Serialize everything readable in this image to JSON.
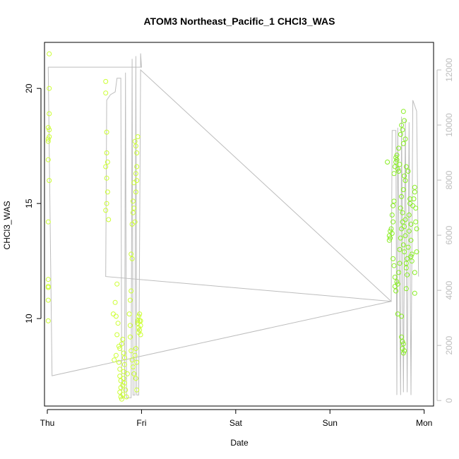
{
  "chart_data": {
    "type": "scatter",
    "title": "ATOM3 Northeast_Pacific_1 CHCl3_WAS",
    "xlabel": "Date",
    "ylabel": "CHCl3_WAS",
    "x_ticks": [
      {
        "label": "Thu",
        "value": 0
      },
      {
        "label": "Fri",
        "value": 1
      },
      {
        "label": "Sat",
        "value": 2
      },
      {
        "label": "Sun",
        "value": 3
      },
      {
        "label": "Mon",
        "value": 4
      }
    ],
    "xlim": [
      -0.03,
      4.1
    ],
    "ylim": [
      6.2,
      22.0
    ],
    "y_ticks": [
      10,
      15,
      20
    ],
    "y2lim": [
      -200,
      13000
    ],
    "y2_ticks": [
      0,
      2000,
      4000,
      6000,
      8000,
      10000,
      12000
    ],
    "grid": false,
    "colors": {
      "points_early": "#ccff33",
      "points_late": "#88ee22",
      "altitude_line": "#bdbdbd",
      "axis": "#000000",
      "right_axis": "#bdbdbd"
    },
    "series": [
      {
        "role": "CHCl3_WAS points",
        "points": [
          [
            0.02,
            21.5
          ],
          [
            0.02,
            20.0
          ],
          [
            0.02,
            18.9
          ],
          [
            0.01,
            18.3
          ],
          [
            0.02,
            18.2
          ],
          [
            0.02,
            17.9
          ],
          [
            0.01,
            17.8
          ],
          [
            0.01,
            17.7
          ],
          [
            0.01,
            16.9
          ],
          [
            0.02,
            16.0
          ],
          [
            0.01,
            14.2
          ],
          [
            0.01,
            11.7
          ],
          [
            0.01,
            11.4
          ],
          [
            0.01,
            11.35
          ],
          [
            0.01,
            10.8
          ],
          [
            0.01,
            9.9
          ],
          [
            0.62,
            20.3
          ],
          [
            0.62,
            19.8
          ],
          [
            0.63,
            18.1
          ],
          [
            0.63,
            17.2
          ],
          [
            0.64,
            16.8
          ],
          [
            0.62,
            16.6
          ],
          [
            0.63,
            16.1
          ],
          [
            0.64,
            15.5
          ],
          [
            0.63,
            15.0
          ],
          [
            0.62,
            14.7
          ],
          [
            0.65,
            14.3
          ],
          [
            0.7,
            10.2
          ],
          [
            0.72,
            10.7
          ],
          [
            0.74,
            11.5
          ],
          [
            0.73,
            10.1
          ],
          [
            0.75,
            9.8
          ],
          [
            0.74,
            9.3
          ],
          [
            0.76,
            8.8
          ],
          [
            0.73,
            8.4
          ],
          [
            0.71,
            8.2
          ],
          [
            0.77,
            8.7
          ],
          [
            0.76,
            8.1
          ],
          [
            0.77,
            7.8
          ],
          [
            0.77,
            7.5
          ],
          [
            0.78,
            7.3
          ],
          [
            0.78,
            7.0
          ],
          [
            0.77,
            6.8
          ],
          [
            0.78,
            6.6
          ],
          [
            0.79,
            6.5
          ],
          [
            0.8,
            6.7
          ],
          [
            0.8,
            7.1
          ],
          [
            0.81,
            7.4
          ],
          [
            0.81,
            7.7
          ],
          [
            0.82,
            8.0
          ],
          [
            0.82,
            8.3
          ],
          [
            0.82,
            7.2
          ],
          [
            0.83,
            6.9
          ],
          [
            0.84,
            6.6
          ],
          [
            0.85,
            7.6
          ],
          [
            0.79,
            8.9
          ],
          [
            0.8,
            9.1
          ],
          [
            0.81,
            8.5
          ],
          [
            0.87,
            10.2
          ],
          [
            0.88,
            9.7
          ],
          [
            0.88,
            10.8
          ],
          [
            0.89,
            11.2
          ],
          [
            0.89,
            12.8
          ],
          [
            0.9,
            12.6
          ],
          [
            0.9,
            14.1
          ],
          [
            0.91,
            14.6
          ],
          [
            0.91,
            15.1
          ],
          [
            0.92,
            14.8
          ],
          [
            0.92,
            15.9
          ],
          [
            0.93,
            14.2
          ],
          [
            0.88,
            9.2
          ],
          [
            0.89,
            8.6
          ],
          [
            0.9,
            8.2
          ],
          [
            0.91,
            7.9
          ],
          [
            0.92,
            7.6
          ],
          [
            0.93,
            8.4
          ],
          [
            0.94,
            8.7
          ],
          [
            0.95,
            8.1
          ],
          [
            0.94,
            7.4
          ],
          [
            0.95,
            6.9
          ],
          [
            0.93,
            17.7
          ],
          [
            0.94,
            17.5
          ],
          [
            0.95,
            17.2
          ],
          [
            0.95,
            16.6
          ],
          [
            0.94,
            16.3
          ],
          [
            0.96,
            17.9
          ],
          [
            0.95,
            16.0
          ],
          [
            0.94,
            15.5
          ],
          [
            0.96,
            9.8
          ],
          [
            0.97,
            9.6
          ],
          [
            0.97,
            10.1
          ],
          [
            0.98,
            9.9
          ],
          [
            0.98,
            9.5
          ],
          [
            0.99,
            9.7
          ],
          [
            0.99,
            9.9
          ],
          [
            0.98,
            10.2
          ],
          [
            0.97,
            9.4
          ],
          [
            0.99,
            9.3
          ],
          [
            0.96,
            9.9
          ],
          [
            3.61,
            16.8
          ],
          [
            3.63,
            13.6
          ],
          [
            3.64,
            13.8
          ],
          [
            3.63,
            13.4
          ],
          [
            3.65,
            13.9
          ],
          [
            3.64,
            13.5
          ],
          [
            3.66,
            13.7
          ],
          [
            3.67,
            14.2
          ],
          [
            3.66,
            14.5
          ],
          [
            3.67,
            14.9
          ],
          [
            3.68,
            15.1
          ],
          [
            3.68,
            16.3
          ],
          [
            3.69,
            16.6
          ],
          [
            3.7,
            17.0
          ],
          [
            3.7,
            16.8
          ],
          [
            3.71,
            16.9
          ],
          [
            3.71,
            17.1
          ],
          [
            3.72,
            16.5
          ],
          [
            3.73,
            17.4
          ],
          [
            3.73,
            16.4
          ],
          [
            3.74,
            16.7
          ],
          [
            3.67,
            12.6
          ],
          [
            3.68,
            12.3
          ],
          [
            3.69,
            11.8
          ],
          [
            3.69,
            11.4
          ],
          [
            3.7,
            11.2
          ],
          [
            3.71,
            11.6
          ],
          [
            3.72,
            11.5
          ],
          [
            3.72,
            10.2
          ],
          [
            3.73,
            12.0
          ],
          [
            3.74,
            12.4
          ],
          [
            3.74,
            13.0
          ],
          [
            3.75,
            13.5
          ],
          [
            3.75,
            14.8
          ],
          [
            3.76,
            15.3
          ],
          [
            3.76,
            13.9
          ],
          [
            3.77,
            14.2
          ],
          [
            3.77,
            14.6
          ],
          [
            3.78,
            15.6
          ],
          [
            3.78,
            13.2
          ],
          [
            3.79,
            12.9
          ],
          [
            3.79,
            14.0
          ],
          [
            3.8,
            14.3
          ],
          [
            3.8,
            13.6
          ],
          [
            3.81,
            12.4
          ],
          [
            3.81,
            12.2
          ],
          [
            3.82,
            11.9
          ],
          [
            3.82,
            12.6
          ],
          [
            3.83,
            13.1
          ],
          [
            3.84,
            13.8
          ],
          [
            3.84,
            14.5
          ],
          [
            3.85,
            15.0
          ],
          [
            3.86,
            14.1
          ],
          [
            3.86,
            13.4
          ],
          [
            3.87,
            12.8
          ],
          [
            3.87,
            12.5
          ],
          [
            3.88,
            14.9
          ],
          [
            3.89,
            15.2
          ],
          [
            3.9,
            15.7
          ],
          [
            3.9,
            15.5
          ],
          [
            3.91,
            14.8
          ],
          [
            3.91,
            14.2
          ],
          [
            3.92,
            13.9
          ],
          [
            3.92,
            12.9
          ],
          [
            3.76,
            9.2
          ],
          [
            3.77,
            9.0
          ],
          [
            3.77,
            8.7
          ],
          [
            3.78,
            8.5
          ],
          [
            3.78,
            8.9
          ],
          [
            3.79,
            8.6
          ],
          [
            3.76,
            10.1
          ],
          [
            3.75,
            18.0
          ],
          [
            3.76,
            18.4
          ],
          [
            3.77,
            18.2
          ],
          [
            3.78,
            19.0
          ],
          [
            3.79,
            18.6
          ],
          [
            3.8,
            17.8
          ],
          [
            3.78,
            17.6
          ],
          [
            3.79,
            16.2
          ],
          [
            3.8,
            16.0
          ],
          [
            3.81,
            16.6
          ],
          [
            3.83,
            16.4
          ],
          [
            3.85,
            15.2
          ],
          [
            3.9,
            11.1
          ],
          [
            3.9,
            12.0
          ],
          [
            3.86,
            12.7
          ],
          [
            3.81,
            11.3
          ]
        ]
      },
      {
        "role": "altitude line",
        "axis": "right",
        "points": [
          [
            0.01,
            12100
          ],
          [
            0.06,
            12100
          ],
          [
            1.0,
            12100
          ],
          [
            0.99,
            12600
          ],
          [
            0.99,
            12100
          ],
          [
            0.01,
            12100
          ],
          [
            0.05,
            900
          ],
          [
            3.65,
            3600
          ],
          [
            0.62,
            4500
          ],
          [
            0.63,
            10900
          ],
          [
            0.67,
            11100
          ],
          [
            0.72,
            11200
          ],
          [
            0.74,
            11700
          ],
          [
            0.78,
            11700
          ],
          [
            0.79,
            100
          ],
          [
            0.82,
            100
          ],
          [
            0.83,
            11900
          ],
          [
            0.84,
            100
          ],
          [
            0.89,
            100
          ],
          [
            0.9,
            12400
          ],
          [
            0.91,
            200
          ],
          [
            0.93,
            200
          ],
          [
            0.94,
            12500
          ],
          [
            0.95,
            200
          ],
          [
            0.97,
            200
          ],
          [
            0.99,
            12000
          ],
          [
            3.65,
            3600
          ],
          [
            3.66,
            9800
          ],
          [
            3.7,
            9800
          ],
          [
            3.71,
            200
          ],
          [
            3.72,
            9900
          ],
          [
            3.75,
            200
          ],
          [
            3.76,
            10300
          ],
          [
            3.78,
            300
          ],
          [
            3.8,
            10200
          ],
          [
            3.82,
            300
          ],
          [
            3.84,
            10100
          ],
          [
            3.86,
            200
          ],
          [
            3.88,
            10900
          ],
          [
            3.92,
            10500
          ],
          [
            3.94,
            4500
          ]
        ]
      }
    ]
  }
}
